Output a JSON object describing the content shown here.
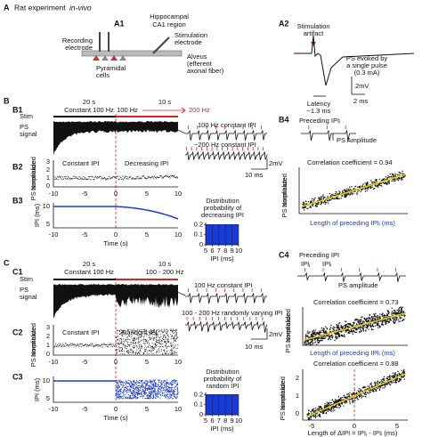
{
  "panel_a": {
    "label": "A",
    "title": "Rat experiment",
    "title_italic": "in-vivo",
    "a1": {
      "label": "A1",
      "region": [
        "Hippocampal",
        "CA1 region"
      ],
      "stim_electrode": [
        "Stimulation",
        "electrode"
      ],
      "rec_electrode": [
        "Recording",
        "electrode"
      ],
      "cells": [
        "Pyramidal",
        "cells"
      ],
      "alveus": [
        "Alveus",
        "(efferent",
        "axonal fiber)"
      ]
    },
    "a2": {
      "label": "A2",
      "artifact": [
        "Stimulation",
        "artifact"
      ],
      "ps": [
        "PS evoked by",
        "a single pulse",
        "(0.3 mA)"
      ],
      "scale_v": "2mV",
      "scale_t": "2 ms",
      "latency": [
        "Latency",
        "~1.3 ms"
      ]
    }
  },
  "panel_b": {
    "label": "B",
    "b1": {
      "label": "B1",
      "dur1": "20 s",
      "phase1": "Constant 100 Hz",
      "dur2": "10 s",
      "freq_from": "100 Hz",
      "freq_to": "200 Hz",
      "stim": "Stim",
      "ps": [
        "PS",
        "signal"
      ],
      "trace1": "100 Hz constant IPI",
      "trace2": "~200 Hz constant IPI",
      "scale_v": "2mV",
      "scale_t": "10 ms"
    },
    "b2": {
      "label": "B2",
      "ylabel": [
        "Normalized",
        "PS amplitude"
      ],
      "yticks": [
        "3",
        "2",
        "1",
        "0"
      ],
      "xticks": [
        "-10",
        "-5",
        "0",
        "5",
        "10"
      ],
      "phase1": "Constant IPI",
      "phase2": "Decreasing IPI"
    },
    "b3": {
      "label": "B3",
      "ylabel": "IPI (ms)",
      "yticks": [
        "10",
        "5"
      ],
      "xticks": [
        "-10",
        "-5",
        "0",
        "5",
        "10"
      ],
      "xlabel": "Time (s)",
      "dist_title": [
        "Distribution",
        "probability of",
        "decreasing IPI"
      ],
      "histogram": {
        "type": "histogram",
        "bins": [
          5,
          6,
          7,
          8,
          9,
          10
        ],
        "values": [
          0.2,
          0.2,
          0.2,
          0.2,
          0.2
        ],
        "color": "#1a3ad6",
        "ylim": [
          0,
          0.22
        ],
        "yticks": [
          0,
          0.1,
          0.2
        ],
        "xticks": [
          5,
          6,
          7,
          8,
          9,
          10
        ],
        "xlabel": "IPI (ms)"
      }
    },
    "b4": {
      "label": "B4",
      "preceding": "Preceding IPIᵢ",
      "ps_amp": "PS Amplitude",
      "corr": "Correlation coefficient = 0.94",
      "ylabel": [
        "Normalized",
        "PS amplitude"
      ],
      "xlabel": "Length of preceding IPIᵢ (ms)"
    }
  },
  "panel_c": {
    "label": "C",
    "c1": {
      "label": "C1",
      "dur1": "20 s",
      "phase1": "Constant 100 Hz",
      "dur2": "10 s",
      "phase2": "100 - 200 Hz",
      "stim": "Stim",
      "ps": [
        "PS",
        "signal"
      ],
      "trace1": "100 Hz constant IPI",
      "trace2": "100 - 200 Hz randomly varying IPI",
      "scale_v": "2mV",
      "scale_t": "10 ms"
    },
    "c2": {
      "label": "C2",
      "ylabel": [
        "Normalized",
        "PS amplitude"
      ],
      "yticks": [
        "3",
        "2",
        "1",
        "0"
      ],
      "xticks": [
        "-10",
        "-5",
        "0",
        "5",
        "10"
      ],
      "phase1": "Constant IPI",
      "phase2": "Random IPI"
    },
    "c3": {
      "label": "C3",
      "ylabel": "IPI (ms)",
      "yticks": [
        "10",
        "5"
      ],
      "xticks": [
        "-10",
        "-5",
        "0",
        "5",
        "10"
      ],
      "xlabel": "Time (s)",
      "dist_title": [
        "Distribution",
        "probability of",
        "random IPI"
      ],
      "histogram": {
        "type": "histogram",
        "bins": [
          5,
          6,
          7,
          8,
          9,
          10
        ],
        "values": [
          0.2,
          0.2,
          0.2,
          0.2,
          0.2
        ],
        "color": "#1a3ad6",
        "ylim": [
          0,
          0.22
        ],
        "yticks": [
          0,
          0.1,
          0.2
        ],
        "xticks": [
          5,
          6,
          7,
          8,
          9,
          10
        ],
        "xlabel": "IPI (ms)"
      }
    },
    "c4": {
      "label": "C4",
      "preceding": "Preceding IPI",
      "ipi_j": "IPIⱼ",
      "ipi_i": "IPIᵢ",
      "ps_amp": "PS amplitude",
      "corr1": "Correlation coefficient = 0.73",
      "ylabel1": [
        "Normalized",
        "PS amplitude"
      ],
      "xlabel1": "Length of preceding IPIᵢ (ms)",
      "corr2": "Correlation coefficient = 0.88",
      "ylabel2": [
        "Normalized",
        "PS amplitude"
      ],
      "yticks2": [
        "2",
        "1",
        "0"
      ],
      "xticks2": [
        "-5",
        "0",
        "5"
      ],
      "xlabel2": "Length of ΔIPI = IPIⱼ - IPIᵢ (ms)"
    }
  }
}
